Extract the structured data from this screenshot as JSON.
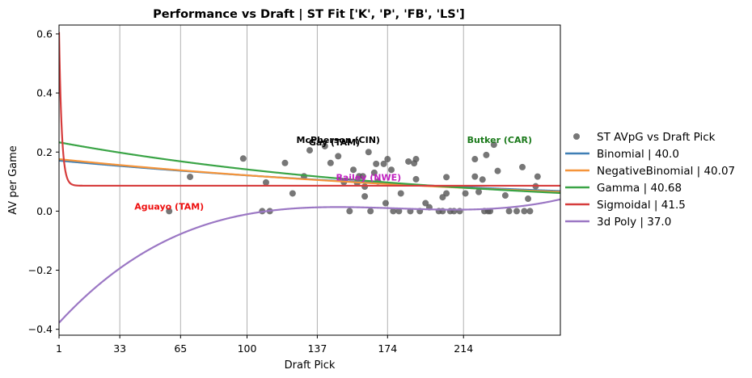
{
  "chart_data": {
    "type": "scatter",
    "title": "Performance vs Draft | ST Fit ['K', 'P', 'FB', 'LS']",
    "xlabel": "Draft Pick",
    "ylabel": "AV per Game",
    "xlim": [
      1,
      265
    ],
    "ylim": [
      -0.42,
      0.63
    ],
    "xticks": [
      1,
      33,
      65,
      100,
      137,
      174,
      214
    ],
    "yticks": [
      -0.4,
      -0.2,
      0.0,
      0.2,
      0.4,
      0.6
    ],
    "ytick_labels": [
      "−0.4",
      "−0.2",
      "0.0",
      "0.2",
      "0.4",
      "0.6"
    ],
    "grid": "vertical lines at x ticks",
    "legend_position": "right-outside",
    "scatter": {
      "name": "ST AVpG vs Draft Pick",
      "color": "#555555",
      "points": [
        [
          59,
          0.0
        ],
        [
          70,
          0.116
        ],
        [
          98,
          0.178
        ],
        [
          108,
          0.0
        ],
        [
          110,
          0.097
        ],
        [
          112,
          0.0
        ],
        [
          120,
          0.163
        ],
        [
          124,
          0.06
        ],
        [
          130,
          0.118
        ],
        [
          133,
          0.206
        ],
        [
          141,
          0.22
        ],
        [
          144,
          0.163
        ],
        [
          148,
          0.186
        ],
        [
          151,
          0.098
        ],
        [
          154,
          0.0
        ],
        [
          156,
          0.14
        ],
        [
          158,
          0.095
        ],
        [
          159,
          0.118
        ],
        [
          161,
          0.118
        ],
        [
          162,
          0.083
        ],
        [
          162,
          0.05
        ],
        [
          164,
          0.2
        ],
        [
          165,
          0.0
        ],
        [
          167,
          0.13
        ],
        [
          168,
          0.16
        ],
        [
          169,
          0.1
        ],
        [
          172,
          0.16
        ],
        [
          173,
          0.027
        ],
        [
          174,
          0.176
        ],
        [
          176,
          0.14
        ],
        [
          177,
          0.0
        ],
        [
          180,
          0.0
        ],
        [
          181,
          0.06
        ],
        [
          185,
          0.168
        ],
        [
          186,
          0.0
        ],
        [
          188,
          0.162
        ],
        [
          189,
          0.108
        ],
        [
          189,
          0.176
        ],
        [
          191,
          0.0
        ],
        [
          194,
          0.027
        ],
        [
          196,
          0.013
        ],
        [
          201,
          0.0
        ],
        [
          203,
          0.047
        ],
        [
          203,
          0.0
        ],
        [
          205,
          0.115
        ],
        [
          205,
          0.06
        ],
        [
          207,
          0.0
        ],
        [
          209,
          0.0
        ],
        [
          212,
          0.0
        ],
        [
          215,
          0.06
        ],
        [
          220,
          0.117
        ],
        [
          220,
          0.176
        ],
        [
          222,
          0.065
        ],
        [
          224,
          0.107
        ],
        [
          225,
          0.0
        ],
        [
          226,
          0.19
        ],
        [
          227,
          0.0
        ],
        [
          228,
          0.0
        ],
        [
          230,
          0.225
        ],
        [
          232,
          0.136
        ],
        [
          236,
          0.053
        ],
        [
          238,
          0.0
        ],
        [
          242,
          0.0
        ],
        [
          245,
          0.149
        ],
        [
          246,
          0.0
        ],
        [
          248,
          0.042
        ],
        [
          249,
          0.0
        ],
        [
          252,
          0.084
        ],
        [
          253,
          0.117
        ]
      ]
    },
    "series": [
      {
        "name": "Binomial | 40.0",
        "color": "#3f7fb5",
        "type": "line",
        "fn": "exp",
        "params": {
          "a": 0.171,
          "b": 0.00349
        }
      },
      {
        "name": "NegativeBinomial | 40.07",
        "color": "#f5943a",
        "type": "line",
        "fn": "exp",
        "params": {
          "a": 0.176,
          "b": 0.00377
        }
      },
      {
        "name": "Gamma | 40.68",
        "color": "#3aa446",
        "type": "line",
        "fn": "exp",
        "params": {
          "a": 0.233,
          "b": 0.00506
        }
      },
      {
        "name": "Sigmoidal | 41.5",
        "color": "#d63c3c",
        "type": "line",
        "fn": "decay",
        "params": {
          "c": 0.086,
          "a": 0.52,
          "k": 0.7
        }
      },
      {
        "name": "3d Poly | 37.0",
        "color": "#9b77c4",
        "type": "line",
        "fn": "poly3",
        "params": {
          "d": -0.378,
          "c": 0.006977,
          "b": -4.052e-05,
          "a": 7.61e-08
        }
      }
    ],
    "annotations": [
      {
        "text": "McPherson (CIN)",
        "x": 148,
        "y": 0.225,
        "color": "#000000"
      },
      {
        "text": "Gay (TAM)",
        "x": 146,
        "y": 0.217,
        "color": "#000000"
      },
      {
        "text": "Butker (CAR)",
        "x": 233,
        "y": 0.225,
        "color": "#1b7a1b"
      },
      {
        "text": "Bailey (NWE)",
        "x": 164,
        "y": 0.098,
        "color": "#c020c0"
      },
      {
        "text": "Aguayo (TAM)",
        "x": 59,
        "y": 0.0,
        "color": "#ee1111"
      }
    ]
  }
}
